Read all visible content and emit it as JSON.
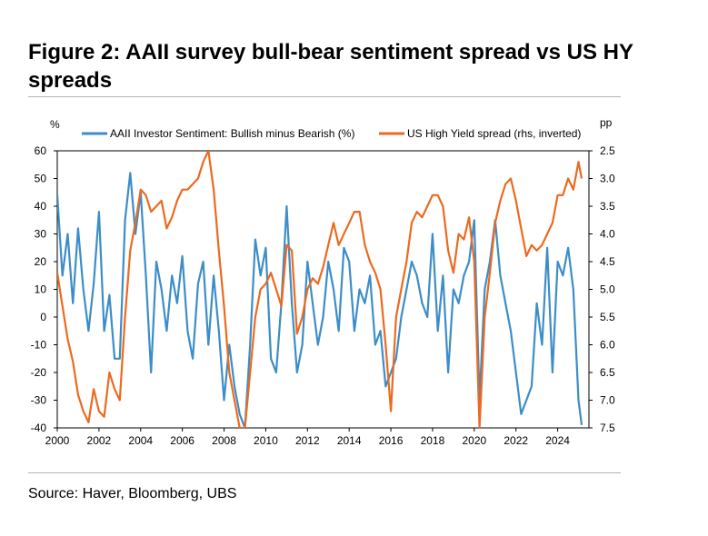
{
  "title": "Figure 2: AAII survey bull-bear sentiment spread vs US HY spreads",
  "source": "Source: Haver, Bloomberg, UBS",
  "colors": {
    "sentiment": "#3c8dc8",
    "hy": "#ec6a1f",
    "axis": "#000000",
    "rule": "#b5b5b5"
  },
  "chart_data": {
    "type": "line",
    "left_unit": "%",
    "right_unit": "pp",
    "ylim_left": [
      -40,
      60
    ],
    "yticks_left": [
      "60",
      "50",
      "40",
      "30",
      "20",
      "10",
      "0",
      "-10",
      "-20",
      "-30",
      "-40"
    ],
    "ylim_right_inverted": [
      2.5,
      7.5
    ],
    "yticks_right": [
      "2.5",
      "3.0",
      "3.5",
      "4.0",
      "4.5",
      "5.0",
      "5.5",
      "6.0",
      "6.5",
      "7.0",
      "7.5"
    ],
    "xlim": [
      2000,
      2025.5
    ],
    "xticks": [
      "2000",
      "2002",
      "2004",
      "2006",
      "2008",
      "2010",
      "2012",
      "2014",
      "2016",
      "2018",
      "2020",
      "2022",
      "2024"
    ],
    "legend_position": "top",
    "series": [
      {
        "name": "AAII Investor Sentiment: Bullish minus Bearish (%)",
        "axis": "left",
        "x": [
          2000.0,
          2000.25,
          2000.5,
          2000.75,
          2001.0,
          2001.25,
          2001.5,
          2001.75,
          2002.0,
          2002.25,
          2002.5,
          2002.75,
          2003.0,
          2003.25,
          2003.5,
          2003.75,
          2004.0,
          2004.25,
          2004.5,
          2004.75,
          2005.0,
          2005.25,
          2005.5,
          2005.75,
          2006.0,
          2006.25,
          2006.5,
          2006.75,
          2007.0,
          2007.25,
          2007.5,
          2007.75,
          2008.0,
          2008.25,
          2008.5,
          2008.75,
          2009.0,
          2009.25,
          2009.5,
          2009.75,
          2010.0,
          2010.25,
          2010.5,
          2010.75,
          2011.0,
          2011.25,
          2011.5,
          2011.75,
          2012.0,
          2012.25,
          2012.5,
          2012.75,
          2013.0,
          2013.25,
          2013.5,
          2013.75,
          2014.0,
          2014.25,
          2014.5,
          2014.75,
          2015.0,
          2015.25,
          2015.5,
          2015.75,
          2016.0,
          2016.25,
          2016.5,
          2016.75,
          2017.0,
          2017.25,
          2017.5,
          2017.75,
          2018.0,
          2018.25,
          2018.5,
          2018.75,
          2019.0,
          2019.25,
          2019.5,
          2019.75,
          2020.0,
          2020.25,
          2020.5,
          2020.75,
          2021.0,
          2021.25,
          2021.5,
          2021.75,
          2022.0,
          2022.25,
          2022.5,
          2022.75,
          2023.0,
          2023.25,
          2023.5,
          2023.75,
          2024.0,
          2024.25,
          2024.5,
          2024.75,
          2025.0,
          2025.15
        ],
        "y": [
          44,
          15,
          30,
          5,
          32,
          10,
          -5,
          12,
          38,
          -5,
          8,
          -15,
          -15,
          35,
          52,
          30,
          45,
          15,
          -20,
          20,
          10,
          -5,
          15,
          5,
          22,
          -5,
          -15,
          12,
          20,
          -10,
          15,
          -5,
          -30,
          -10,
          -25,
          -35,
          -40,
          -10,
          28,
          15,
          25,
          -15,
          -20,
          5,
          40,
          5,
          -20,
          -10,
          20,
          5,
          -10,
          0,
          20,
          10,
          -5,
          25,
          20,
          -5,
          10,
          5,
          15,
          -10,
          -5,
          -25,
          -20,
          -15,
          0,
          10,
          20,
          15,
          5,
          0,
          30,
          -5,
          15,
          -20,
          10,
          5,
          15,
          20,
          35,
          -30,
          10,
          20,
          35,
          15,
          5,
          -5,
          -20,
          -35,
          -30,
          -25,
          5,
          -10,
          25,
          -20,
          20,
          15,
          25,
          10,
          -30,
          -39
        ]
      },
      {
        "name": "US High Yield spread (rhs, inverted)",
        "axis": "right",
        "x": [
          2000.0,
          2000.25,
          2000.5,
          2000.75,
          2001.0,
          2001.25,
          2001.5,
          2001.75,
          2002.0,
          2002.25,
          2002.5,
          2002.75,
          2003.0,
          2003.25,
          2003.5,
          2003.75,
          2004.0,
          2004.25,
          2004.5,
          2004.75,
          2005.0,
          2005.25,
          2005.5,
          2005.75,
          2006.0,
          2006.25,
          2006.5,
          2006.75,
          2007.0,
          2007.25,
          2007.5,
          2007.75,
          2008.0,
          2008.25,
          2008.5,
          2008.75,
          2009.0,
          2009.25,
          2009.5,
          2009.75,
          2010.0,
          2010.25,
          2010.5,
          2010.75,
          2011.0,
          2011.25,
          2011.5,
          2011.75,
          2012.0,
          2012.25,
          2012.5,
          2012.75,
          2013.0,
          2013.25,
          2013.5,
          2013.75,
          2014.0,
          2014.25,
          2014.5,
          2014.75,
          2015.0,
          2015.25,
          2015.5,
          2015.75,
          2016.0,
          2016.25,
          2016.5,
          2016.75,
          2017.0,
          2017.25,
          2017.5,
          2017.75,
          2018.0,
          2018.25,
          2018.5,
          2018.75,
          2019.0,
          2019.25,
          2019.5,
          2019.75,
          2020.0,
          2020.25,
          2020.5,
          2020.75,
          2021.0,
          2021.25,
          2021.5,
          2021.75,
          2022.0,
          2022.25,
          2022.5,
          2022.75,
          2023.0,
          2023.25,
          2023.5,
          2023.75,
          2024.0,
          2024.25,
          2024.5,
          2024.75,
          2025.0,
          2025.15
        ],
        "y": [
          4.7,
          5.3,
          5.9,
          6.3,
          6.9,
          7.2,
          7.4,
          6.8,
          7.2,
          7.3,
          6.5,
          6.8,
          7.0,
          5.5,
          4.3,
          3.8,
          3.2,
          3.3,
          3.6,
          3.5,
          3.4,
          3.9,
          3.7,
          3.4,
          3.2,
          3.2,
          3.1,
          3.0,
          2.7,
          2.5,
          3.2,
          4.3,
          5.3,
          6.5,
          7.0,
          7.5,
          7.5,
          6.5,
          5.5,
          5.0,
          4.9,
          4.7,
          5.0,
          5.3,
          4.2,
          4.3,
          5.8,
          5.5,
          5.0,
          4.8,
          4.9,
          4.6,
          4.2,
          3.8,
          4.2,
          4.0,
          3.8,
          3.6,
          3.6,
          4.2,
          4.5,
          4.7,
          5.0,
          6.0,
          7.2,
          5.5,
          5.0,
          4.5,
          3.8,
          3.6,
          3.7,
          3.5,
          3.3,
          3.3,
          3.5,
          4.3,
          4.7,
          4.0,
          4.1,
          3.7,
          4.5,
          7.5,
          5.5,
          4.7,
          3.8,
          3.4,
          3.1,
          3.0,
          3.4,
          3.9,
          4.4,
          4.2,
          4.3,
          4.2,
          4.0,
          3.8,
          3.3,
          3.3,
          3.0,
          3.2,
          2.7,
          3.0
        ]
      }
    ]
  }
}
